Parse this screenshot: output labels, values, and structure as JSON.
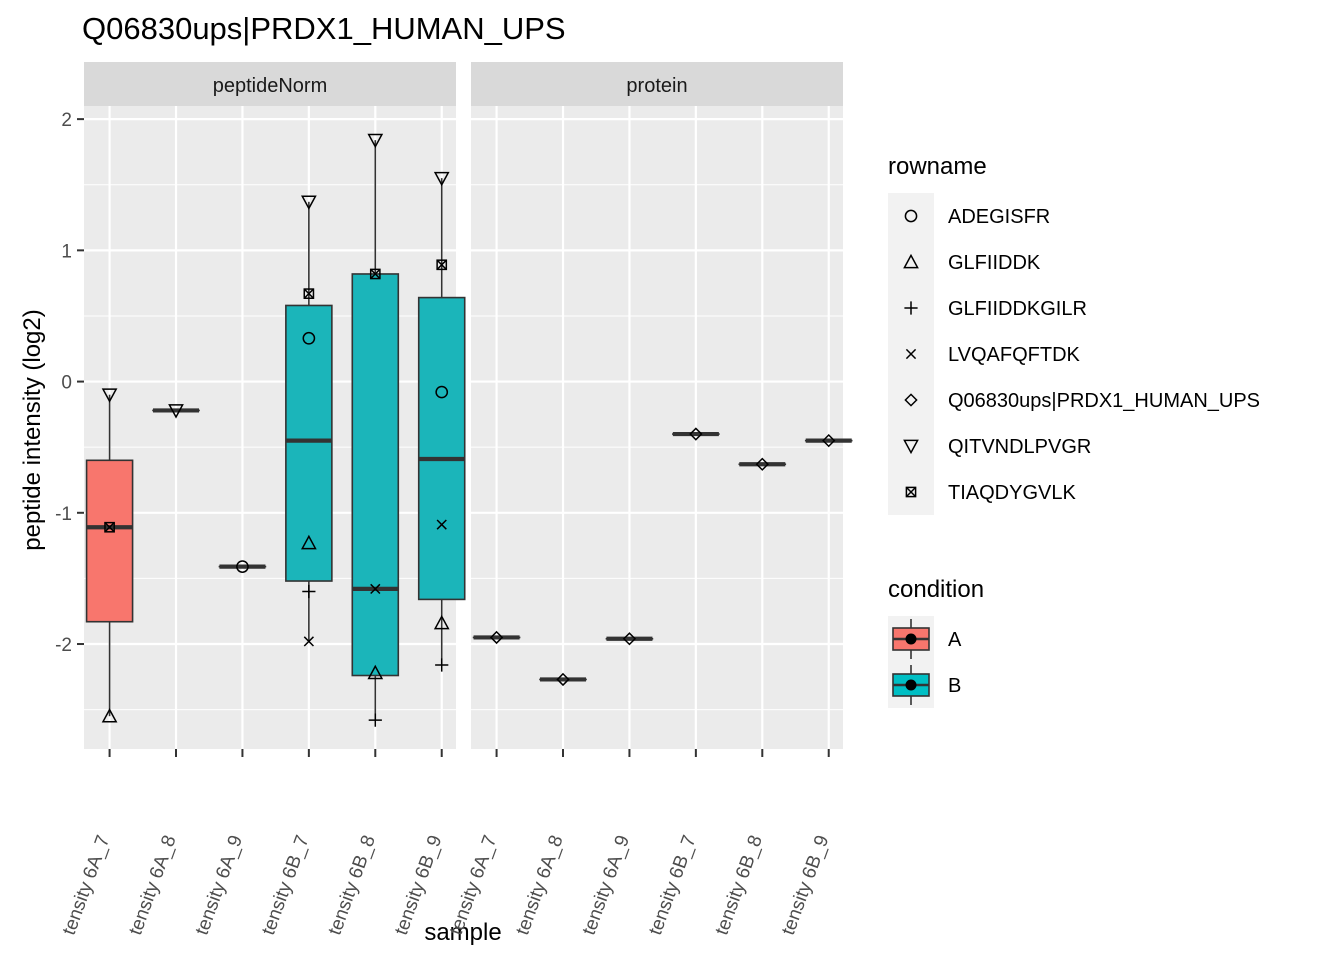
{
  "chart_data": {
    "type": "boxplot",
    "title": "Q06830ups|PRDX1_HUMAN_UPS",
    "xlabel": "sample",
    "ylabel": "peptide intensity (log2)",
    "ylim": [
      -2.8,
      2.1
    ],
    "yticks": [
      -2,
      -1,
      0,
      1,
      2
    ],
    "grid": true,
    "samples": [
      "tensity 6A_7",
      "tensity 6A_8",
      "tensity 6A_9",
      "tensity 6B_7",
      "tensity 6B_8",
      "tensity 6B_9"
    ],
    "panels": [
      {
        "name": "peptideNorm",
        "boxes": [
          {
            "sample": "tensity 6A_7",
            "condition": "A",
            "lower_whisker": -2.55,
            "q1": -1.83,
            "median": -1.11,
            "q3": -0.6,
            "upper_whisker": -0.1
          },
          {
            "sample": "tensity 6A_8",
            "condition": "B",
            "lower_whisker": -0.22,
            "q1": -0.22,
            "median": -0.22,
            "q3": -0.22,
            "upper_whisker": -0.22
          },
          {
            "sample": "tensity 6A_9",
            "condition": "B",
            "lower_whisker": -1.41,
            "q1": -1.41,
            "median": -1.41,
            "q3": -1.41,
            "upper_whisker": -1.41
          },
          {
            "sample": "tensity 6B_7",
            "condition": "B",
            "lower_whisker": -1.98,
            "q1": -1.52,
            "median": -0.45,
            "q3": 0.58,
            "upper_whisker": 1.37
          },
          {
            "sample": "tensity 6B_8",
            "condition": "B",
            "lower_whisker": -2.58,
            "q1": -2.24,
            "median": -1.58,
            "q3": 0.82,
            "upper_whisker": 1.84
          },
          {
            "sample": "tensity 6B_9",
            "condition": "B",
            "lower_whisker": -2.16,
            "q1": -1.66,
            "median": -0.59,
            "q3": 0.64,
            "upper_whisker": 1.55
          }
        ],
        "points": [
          {
            "sample": "tensity 6A_7",
            "rowname": "QITVNDLPVGR",
            "y": -0.1
          },
          {
            "sample": "tensity 6A_7",
            "rowname": "TIAQDYGVLK",
            "y": -1.11
          },
          {
            "sample": "tensity 6A_7",
            "rowname": "GLFIIDDK",
            "y": -2.55
          },
          {
            "sample": "tensity 6A_8",
            "rowname": "QITVNDLPVGR",
            "y": -0.22
          },
          {
            "sample": "tensity 6A_9",
            "rowname": "ADEGISFR",
            "y": -1.41
          },
          {
            "sample": "tensity 6B_7",
            "rowname": "QITVNDLPVGR",
            "y": 1.37
          },
          {
            "sample": "tensity 6B_7",
            "rowname": "TIAQDYGVLK",
            "y": 0.67
          },
          {
            "sample": "tensity 6B_7",
            "rowname": "ADEGISFR",
            "y": 0.33
          },
          {
            "sample": "tensity 6B_7",
            "rowname": "GLFIIDDK",
            "y": -1.23
          },
          {
            "sample": "tensity 6B_7",
            "rowname": "GLFIIDDKGILR",
            "y": -1.6
          },
          {
            "sample": "tensity 6B_7",
            "rowname": "LVQAFQFTDK",
            "y": -1.98
          },
          {
            "sample": "tensity 6B_8",
            "rowname": "QITVNDLPVGR",
            "y": 1.84
          },
          {
            "sample": "tensity 6B_8",
            "rowname": "TIAQDYGVLK",
            "y": 0.82
          },
          {
            "sample": "tensity 6B_8",
            "rowname": "LVQAFQFTDK",
            "y": -1.58
          },
          {
            "sample": "tensity 6B_8",
            "rowname": "GLFIIDDK",
            "y": -2.22
          },
          {
            "sample": "tensity 6B_8",
            "rowname": "GLFIIDDKGILR",
            "y": -2.58
          },
          {
            "sample": "tensity 6B_9",
            "rowname": "QITVNDLPVGR",
            "y": 1.55
          },
          {
            "sample": "tensity 6B_9",
            "rowname": "TIAQDYGVLK",
            "y": 0.89
          },
          {
            "sample": "tensity 6B_9",
            "rowname": "ADEGISFR",
            "y": -0.08
          },
          {
            "sample": "tensity 6B_9",
            "rowname": "LVQAFQFTDK",
            "y": -1.09
          },
          {
            "sample": "tensity 6B_9",
            "rowname": "GLFIIDDK",
            "y": -1.84
          },
          {
            "sample": "tensity 6B_9",
            "rowname": "GLFIIDDKGILR",
            "y": -2.16
          }
        ]
      },
      {
        "name": "protein",
        "boxes": [
          {
            "sample": "tensity 6A_7",
            "condition": "A",
            "lower_whisker": -1.95,
            "q1": -1.95,
            "median": -1.95,
            "q3": -1.95,
            "upper_whisker": -1.95
          },
          {
            "sample": "tensity 6A_8",
            "condition": "B",
            "lower_whisker": -2.27,
            "q1": -2.27,
            "median": -2.27,
            "q3": -2.27,
            "upper_whisker": -2.27
          },
          {
            "sample": "tensity 6A_9",
            "condition": "B",
            "lower_whisker": -1.96,
            "q1": -1.96,
            "median": -1.96,
            "q3": -1.96,
            "upper_whisker": -1.96
          },
          {
            "sample": "tensity 6B_7",
            "condition": "B",
            "lower_whisker": -0.4,
            "q1": -0.4,
            "median": -0.4,
            "q3": -0.4,
            "upper_whisker": -0.4
          },
          {
            "sample": "tensity 6B_8",
            "condition": "B",
            "lower_whisker": -0.63,
            "q1": -0.63,
            "median": -0.63,
            "q3": -0.63,
            "upper_whisker": -0.63
          },
          {
            "sample": "tensity 6B_9",
            "condition": "B",
            "lower_whisker": -0.45,
            "q1": -0.45,
            "median": -0.45,
            "q3": -0.45,
            "upper_whisker": -0.45
          }
        ],
        "points": [
          {
            "sample": "tensity 6A_7",
            "rowname": "Q06830ups|PRDX1_HUMAN_UPS",
            "y": -1.95
          },
          {
            "sample": "tensity 6A_8",
            "rowname": "Q06830ups|PRDX1_HUMAN_UPS",
            "y": -2.27
          },
          {
            "sample": "tensity 6A_9",
            "rowname": "Q06830ups|PRDX1_HUMAN_UPS",
            "y": -1.96
          },
          {
            "sample": "tensity 6B_7",
            "rowname": "Q06830ups|PRDX1_HUMAN_UPS",
            "y": -0.4
          },
          {
            "sample": "tensity 6B_8",
            "rowname": "Q06830ups|PRDX1_HUMAN_UPS",
            "y": -0.63
          },
          {
            "sample": "tensity 6B_9",
            "rowname": "Q06830ups|PRDX1_HUMAN_UPS",
            "y": -0.45
          }
        ]
      }
    ],
    "legends": {
      "rowname": {
        "title": "rowname",
        "entries": [
          {
            "label": "ADEGISFR",
            "shape": "circle"
          },
          {
            "label": "GLFIIDDK",
            "shape": "triangle-up"
          },
          {
            "label": "GLFIIDDKGILR",
            "shape": "plus"
          },
          {
            "label": "LVQAFQFTDK",
            "shape": "cross"
          },
          {
            "label": "Q06830ups|PRDX1_HUMAN_UPS",
            "shape": "diamond"
          },
          {
            "label": "QITVNDLPVGR",
            "shape": "triangle-down"
          },
          {
            "label": "TIAQDYGVLK",
            "shape": "square-cross"
          }
        ]
      },
      "condition": {
        "title": "condition",
        "entries": [
          {
            "label": "A",
            "color": "#F8766D"
          },
          {
            "label": "B",
            "color": "#00BFC4"
          }
        ]
      }
    },
    "colors": {
      "panel_background": "#EBEBEB",
      "strip_background": "#D9D9D9",
      "grid": "#FFFFFF",
      "box_A": "#F8766D",
      "box_B": "#1BB5BA"
    }
  }
}
